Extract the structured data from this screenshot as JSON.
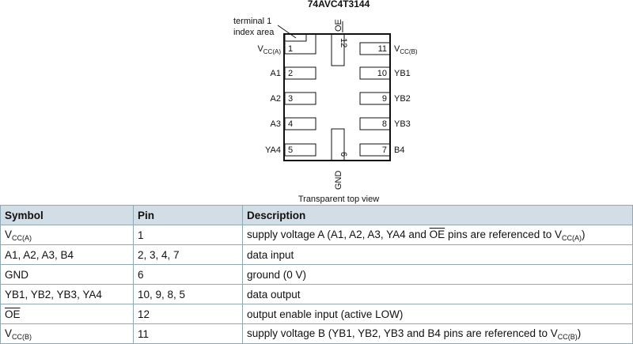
{
  "diagram": {
    "title": "74AVC4T3144",
    "index_label_line1": "terminal 1",
    "index_label_line2": "index area",
    "caption": "Transparent top view",
    "left_pins": [
      {
        "num": "1",
        "name": "V",
        "sub": "CC(A)"
      },
      {
        "num": "2",
        "name": "A1"
      },
      {
        "num": "3",
        "name": "A2"
      },
      {
        "num": "4",
        "name": "A3"
      },
      {
        "num": "5",
        "name": "YA4"
      }
    ],
    "right_pins": [
      {
        "num": "11",
        "name": "V",
        "sub": "CC(B)"
      },
      {
        "num": "10",
        "name": "YB1"
      },
      {
        "num": "9",
        "name": "YB2"
      },
      {
        "num": "8",
        "name": "YB3"
      },
      {
        "num": "7",
        "name": "B4"
      }
    ],
    "top_pin": {
      "num": "12",
      "name": "OE"
    },
    "bottom_pin": {
      "num": "6",
      "name": "GND"
    }
  },
  "table": {
    "headers": [
      "Symbol",
      "Pin",
      "Description"
    ],
    "rows": [
      {
        "symbol": "V",
        "symbol_sub": "CC(A)",
        "pin": "1",
        "desc_pre": "supply voltage A (A1, A2, A3, YA4 and ",
        "desc_ov": "OE",
        "desc_mid": " pins are referenced to V",
        "desc_sub": "CC(A)",
        "desc_post": ")"
      },
      {
        "symbol": "A1, A2, A3, B4",
        "pin": "2, 3, 4, 7",
        "desc_pre": "data input"
      },
      {
        "symbol": "GND",
        "pin": "6",
        "desc_pre": "ground (0 V)"
      },
      {
        "symbol": "YB1, YB2, YB3, YA4",
        "pin": "10, 9, 8, 5",
        "desc_pre": "data output"
      },
      {
        "symbol_ov": "OE",
        "pin": "12",
        "desc_pre": "output enable input (active LOW)"
      },
      {
        "symbol": "V",
        "symbol_sub": "CC(B)",
        "pin": "11",
        "desc_pre": "supply voltage B (YB1, YB2, YB3 and B4 pins are referenced to V",
        "desc_sub": "CC(B)",
        "desc_post": ")"
      }
    ]
  }
}
